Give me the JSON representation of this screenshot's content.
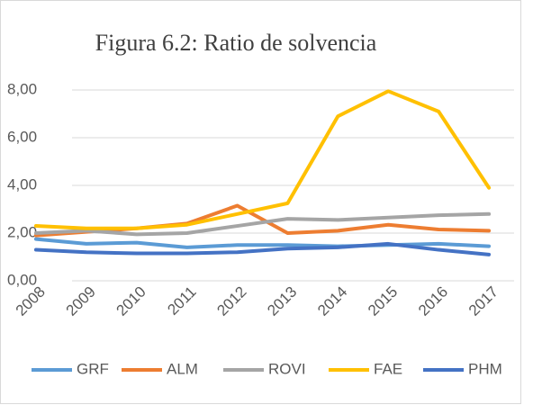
{
  "chart_data": {
    "type": "line",
    "title": "Figura 6.2: Ratio de solvencia",
    "categories": [
      "2008",
      "2009",
      "2010",
      "2011",
      "2012",
      "2013",
      "2014",
      "2015",
      "2016",
      "2017"
    ],
    "series": [
      {
        "name": "GRF",
        "color": "#5b9bd5",
        "values": [
          1.75,
          1.55,
          1.6,
          1.4,
          1.5,
          1.5,
          1.45,
          1.5,
          1.55,
          1.45
        ]
      },
      {
        "name": "ALM",
        "color": "#ed7d31",
        "values": [
          1.9,
          2.05,
          2.2,
          2.4,
          3.15,
          2.0,
          2.1,
          2.35,
          2.15,
          2.1
        ]
      },
      {
        "name": "ROVI",
        "color": "#a5a5a5",
        "values": [
          2.0,
          2.1,
          1.95,
          2.0,
          2.3,
          2.6,
          2.55,
          2.65,
          2.75,
          2.8
        ]
      },
      {
        "name": "FAE",
        "color": "#ffc000",
        "values": [
          2.3,
          2.2,
          2.2,
          2.35,
          2.8,
          3.25,
          6.9,
          7.95,
          7.1,
          3.9
        ]
      },
      {
        "name": "PHM",
        "color": "#4472c4",
        "values": [
          1.3,
          1.2,
          1.15,
          1.15,
          1.2,
          1.35,
          1.4,
          1.55,
          1.3,
          1.1
        ]
      }
    ],
    "ylim": [
      0,
      8
    ],
    "yticks": [
      {
        "value": 0,
        "label": "0,00"
      },
      {
        "value": 2,
        "label": "2,00"
      },
      {
        "value": 4,
        "label": "4,00"
      },
      {
        "value": 6,
        "label": "6,00"
      },
      {
        "value": 8,
        "label": "8,00"
      }
    ],
    "grid": true,
    "legend": "bottom"
  }
}
